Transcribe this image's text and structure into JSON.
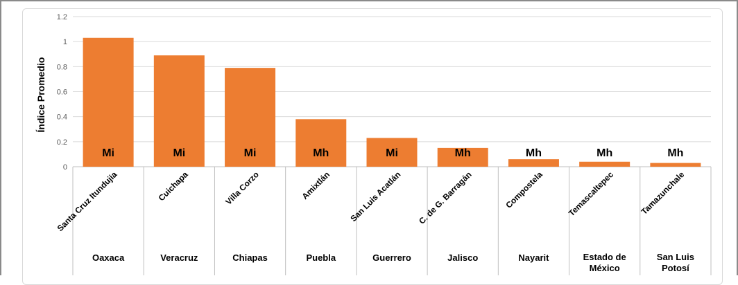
{
  "chart_data": {
    "type": "bar",
    "ylabel": "Índice Promedio",
    "ylim": [
      0,
      1.2
    ],
    "yticks": [
      "0",
      "0.2",
      "0.4",
      "0.6",
      "0.8",
      "1",
      "1.2"
    ],
    "categories": [
      "Santa Cruz Itundujia",
      "Cuichapa",
      "Villa Corzo",
      "Amixtlán",
      "San Luis Acatlán",
      "C. de G. Barragán",
      "Compostela",
      "Temascaltepec",
      "Tamazunchale"
    ],
    "states": [
      [
        "Oaxaca"
      ],
      [
        "Veracruz"
      ],
      [
        "Chiapas"
      ],
      [
        "Puebla"
      ],
      [
        "Guerrero"
      ],
      [
        "Jalisco"
      ],
      [
        "Nayarit"
      ],
      [
        "Estado de",
        "México"
      ],
      [
        "San Luis",
        "Potosí"
      ]
    ],
    "bar_labels": [
      "Mi",
      "Mi",
      "Mi",
      "Mh",
      "Mi",
      "Mh",
      "Mh",
      "Mh",
      "Mh"
    ],
    "values": [
      1.03,
      0.89,
      0.79,
      0.38,
      0.23,
      0.15,
      0.06,
      0.04,
      0.03
    ],
    "grid": true,
    "colors": {
      "bar": "#ED7D31",
      "grid": "#d9d9d9",
      "axis": "#bfbfbf",
      "text": "#000000",
      "tick": "#595959"
    }
  }
}
